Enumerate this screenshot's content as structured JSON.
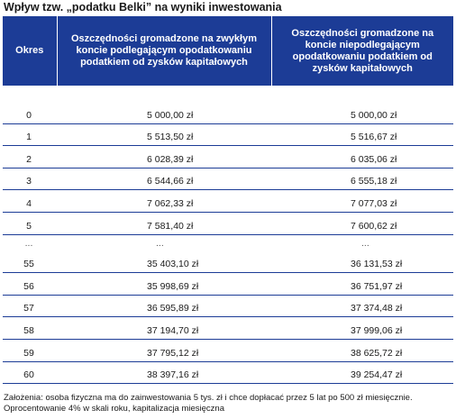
{
  "title": "Wpływ tzw. „podatku Belki” na wyniki inwestowania",
  "table": {
    "headers": {
      "okres": "Okres",
      "col1": "Oszczędności gromadzone na zwykłym koncie podlegającym opodatkowaniu podatkiem od zysków kapitałowych",
      "col2": "Oszczędności gromadzone na koncie niepodlegającym opodatkowaniu podatkiem od zysków kapitałowych"
    },
    "rows_top": [
      {
        "okres": "0",
        "v1": "5 000,00 zł",
        "v2": "5 000,00 zł"
      },
      {
        "okres": "1",
        "v1": "5 513,50 zł",
        "v2": "5 516,67 zł"
      },
      {
        "okres": "2",
        "v1": "6 028,39 zł",
        "v2": "6 035,06 zł"
      },
      {
        "okres": "3",
        "v1": "6 544,66 zł",
        "v2": "6 555,18 zł"
      },
      {
        "okres": "4",
        "v1": "7 062,33 zł",
        "v2": "7 077,03 zł"
      },
      {
        "okres": "5",
        "v1": "7 581,40 zł",
        "v2": "7 600,62 zł"
      }
    ],
    "ellipsis": {
      "okres": "...",
      "v1": "...",
      "v2": "..."
    },
    "rows_bottom": [
      {
        "okres": "55",
        "v1": "35 403,10 zł",
        "v2": "36 131,53 zł"
      },
      {
        "okres": "56",
        "v1": "35 998,69 zł",
        "v2": "36 751,97 zł"
      },
      {
        "okres": "57",
        "v1": "36 595,89 zł",
        "v2": "37 374,48 zł"
      },
      {
        "okres": "58",
        "v1": "37 194,70 zł",
        "v2": "37 999,06 zł"
      },
      {
        "okres": "59",
        "v1": "37 795,12 zł",
        "v2": "38 625,72 zł"
      },
      {
        "okres": "60",
        "v1": "38 397,16 zł",
        "v2": "39 254,47 zł"
      }
    ]
  },
  "note": "Założenia: osoba fizyczna ma do zainwestowania 5 tys. zł i chce dopłacać przez 5 lat po 500 zł miesięcznie. Oprocentowanie 4% w skali roku, kapitalizacja miesięczna",
  "colors": {
    "header_bg": "#1c3c96",
    "header_text": "#ffffff",
    "rule": "#1c3c96"
  }
}
